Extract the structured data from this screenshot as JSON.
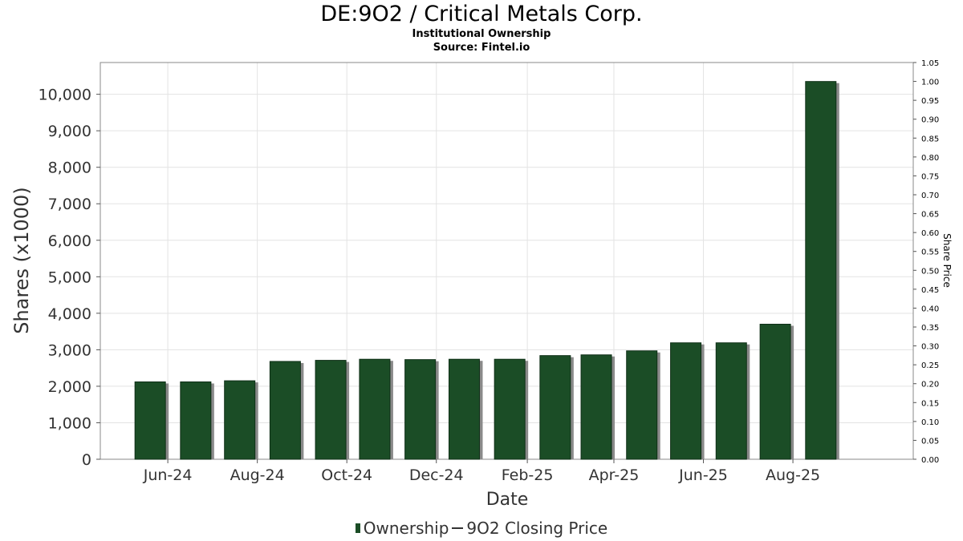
{
  "chart_data": {
    "type": "bar",
    "title": "DE:9O2 / Critical Metals Corp.",
    "subtitles": [
      "Institutional Ownership",
      "Source: Fintel.io"
    ],
    "xlabel": "Date",
    "ylabel": "Shares (x1000)",
    "y2label": "Share Price",
    "ylim": [
      0,
      10870
    ],
    "y2lim": [
      0,
      1.05
    ],
    "yticks": [
      0,
      1000,
      2000,
      3000,
      4000,
      5000,
      6000,
      7000,
      8000,
      9000,
      10000
    ],
    "ytick_labels": [
      "0",
      "1,000",
      "2,000",
      "3,000",
      "4,000",
      "5,000",
      "6,000",
      "7,000",
      "8,000",
      "9,000",
      "10,000"
    ],
    "y2ticks": [
      0,
      0.05,
      0.1,
      0.15,
      0.2,
      0.25,
      0.3,
      0.35,
      0.4,
      0.45,
      0.5,
      0.55,
      0.6,
      0.65,
      0.7,
      0.75,
      0.8,
      0.85,
      0.9,
      0.95,
      1.0,
      1.05
    ],
    "y2tick_labels": [
      "0.00",
      "0.05",
      "0.10",
      "0.15",
      "0.20",
      "0.25",
      "0.30",
      "0.35",
      "0.40",
      "0.45",
      "0.50",
      "0.55",
      "0.60",
      "0.65",
      "0.70",
      "0.75",
      "0.80",
      "0.85",
      "0.90",
      "0.95",
      "1.00",
      "1.05"
    ],
    "xlim": [
      "2024-04-16",
      "2025-10-22"
    ],
    "xticks": [
      {
        "date": "2024-06-01",
        "label": "Jun-24"
      },
      {
        "date": "2024-08-01",
        "label": "Aug-24"
      },
      {
        "date": "2024-10-01",
        "label": "Oct-24"
      },
      {
        "date": "2024-12-01",
        "label": "Dec-24"
      },
      {
        "date": "2025-02-01",
        "label": "Feb-25"
      },
      {
        "date": "2025-04-01",
        "label": "Apr-25"
      },
      {
        "date": "2025-06-01",
        "label": "Jun-25"
      },
      {
        "date": "2025-08-01",
        "label": "Aug-25"
      }
    ],
    "grid": true,
    "legend_position": "bottom",
    "series": [
      {
        "name": "Ownership",
        "type": "bar",
        "color": "#1b4d26",
        "points": [
          {
            "date": "2024-05-20",
            "value": 2120
          },
          {
            "date": "2024-06-20",
            "value": 2120
          },
          {
            "date": "2024-07-20",
            "value": 2150
          },
          {
            "date": "2024-08-20",
            "value": 2680
          },
          {
            "date": "2024-09-20",
            "value": 2710
          },
          {
            "date": "2024-10-20",
            "value": 2740
          },
          {
            "date": "2024-11-20",
            "value": 2730
          },
          {
            "date": "2024-12-20",
            "value": 2740
          },
          {
            "date": "2025-01-20",
            "value": 2740
          },
          {
            "date": "2025-02-20",
            "value": 2840
          },
          {
            "date": "2025-03-20",
            "value": 2860
          },
          {
            "date": "2025-04-20",
            "value": 2970
          },
          {
            "date": "2025-05-20",
            "value": 3190
          },
          {
            "date": "2025-06-20",
            "value": 3190
          },
          {
            "date": "2025-07-20",
            "value": 3700
          },
          {
            "date": "2025-08-20",
            "value": 10350
          }
        ]
      },
      {
        "name": "9O2 Closing Price",
        "type": "line",
        "color": "#333333",
        "points": []
      }
    ],
    "legend": [
      "Ownership",
      "9O2 Closing Price"
    ]
  }
}
